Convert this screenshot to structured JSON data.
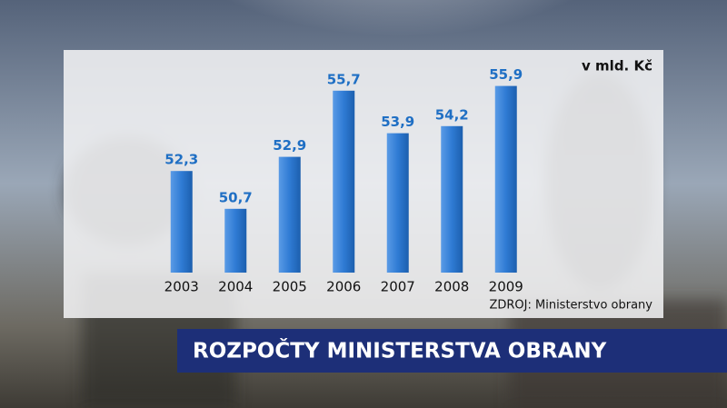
{
  "chart_data": {
    "type": "bar",
    "title": "ROZPOČTY MINISTERSTVA OBRANY",
    "unit": "v mld. Kč",
    "source": "ZDROJ: Ministerstvo obrany",
    "categories": [
      "2003",
      "2004",
      "2005",
      "2006",
      "2007",
      "2008",
      "2009"
    ],
    "values": [
      52.3,
      50.7,
      52.9,
      55.7,
      53.9,
      54.2,
      55.9
    ],
    "value_labels": [
      "52,3",
      "50,7",
      "52,9",
      "55,7",
      "53,9",
      "54,2",
      "55,9"
    ],
    "color": "#2f7bd4",
    "ylim": [
      48,
      58
    ]
  }
}
